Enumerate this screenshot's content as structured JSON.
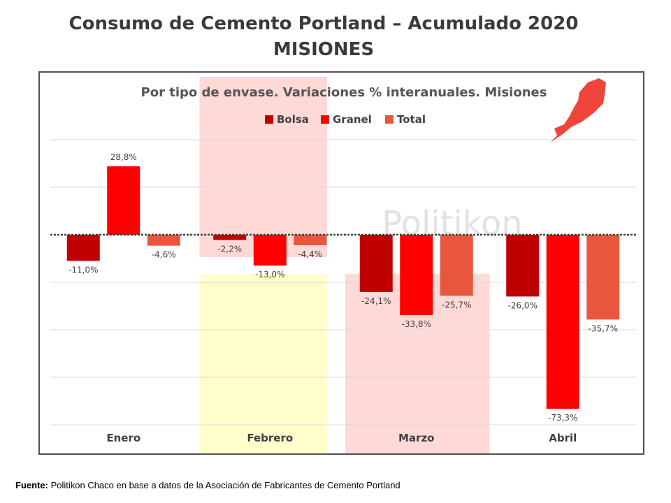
{
  "header": {
    "title_line1": "Consumo de Cemento Portland – Acumulado 2020",
    "title_line2": "MISIONES"
  },
  "footer": {
    "source_label": "Fuente:",
    "source_text": " Politikon Chaco en base a datos de la Asociación de Fabricantes de Cemento Portland"
  },
  "watermark": "Politikon",
  "colors": {
    "bolsa": "#c00000",
    "granel": "#ff0000",
    "total": "#e8563d",
    "band_pink": "#ffd9d5",
    "band_yellow": "#ffffcc",
    "map": "#f0433a"
  },
  "chart_data": {
    "type": "bar",
    "title": "Por tipo de envase. Variaciones % interanuales. Misiones",
    "categories": [
      "Enero",
      "Febrero",
      "Marzo",
      "Abril"
    ],
    "series": [
      {
        "name": "Bolsa",
        "values": [
          -11.0,
          -2.2,
          -24.1,
          -26.0
        ],
        "labels": [
          "-11,0%",
          "-2,2%",
          "-24,1%",
          "-26,0%"
        ]
      },
      {
        "name": "Granel",
        "values": [
          28.8,
          -13.0,
          -33.8,
          -73.3
        ],
        "labels": [
          "28,8%",
          "-13,0%",
          "-33,8%",
          "-73,3%"
        ]
      },
      {
        "name": "Total",
        "values": [
          -4.6,
          -4.4,
          -25.7,
          -35.7
        ],
        "labels": [
          "-4,6%",
          "-4,4%",
          "-25,7%",
          "-35,7%"
        ]
      }
    ],
    "ylim": [
      -80,
      40
    ],
    "gridlines": [
      -80,
      -60,
      -40,
      -20,
      0,
      20,
      40
    ],
    "legend": "top-center",
    "xlabel": "",
    "ylabel": ""
  }
}
